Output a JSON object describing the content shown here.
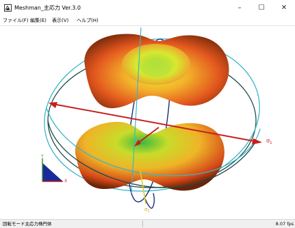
{
  "window": {
    "title": "Meshman_主応力 Ver.3.0",
    "minimize_glyph": "–",
    "maximize_glyph": "☐",
    "close_glyph": "✕"
  },
  "menu": [
    {
      "label": "ファイル(F)"
    },
    {
      "label": "編集(E)"
    },
    {
      "label": "表示(V)"
    },
    {
      "label": "ヘルプ(H)"
    }
  ],
  "viewport": {
    "axis_labels": {
      "sigma1": "σ",
      "sigma1_sub": "1",
      "sigma2": "σ",
      "sigma2_sub": "2"
    },
    "triad_labels": {
      "y": "Y",
      "x": "X"
    }
  },
  "status": {
    "mode_text": "回転モード主応力楕円体",
    "right_text": "8.07 fps"
  },
  "colors": {
    "red_axis": "#c81e1e",
    "cyan_ring": "#3ab6c8",
    "dark_ring": "#1d4a4a",
    "navy_ring": "#1a2a78",
    "triad_blue": "#1a2a9a"
  }
}
